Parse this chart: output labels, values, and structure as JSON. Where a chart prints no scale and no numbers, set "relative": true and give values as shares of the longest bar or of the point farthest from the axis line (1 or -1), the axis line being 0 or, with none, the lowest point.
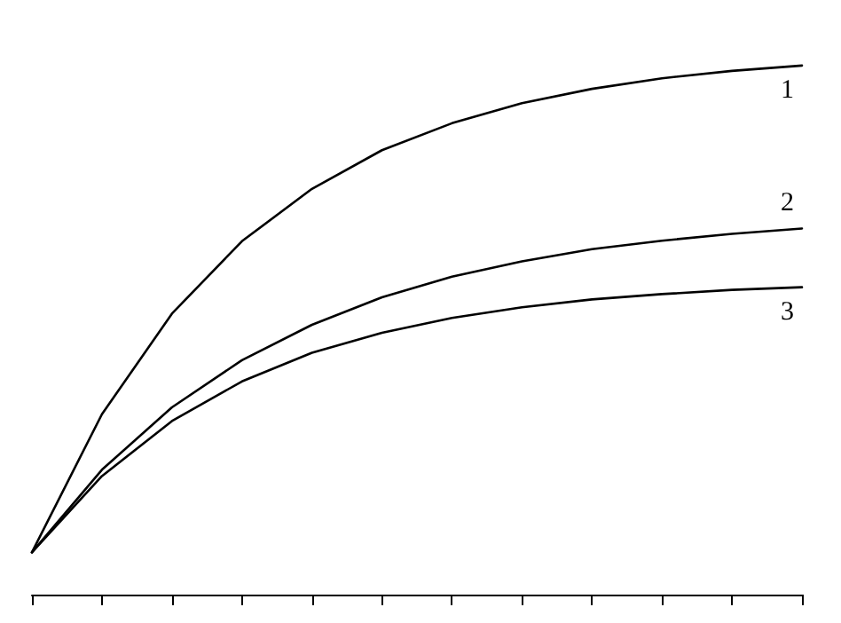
{
  "chart_data": {
    "type": "line",
    "relative": true,
    "categories": [
      null,
      null,
      null,
      null,
      null,
      null,
      null,
      null,
      null,
      null,
      null,
      null
    ],
    "series": [
      {
        "name": "1",
        "color": "#000000",
        "values": [
          0.08,
          0.341,
          0.531,
          0.668,
          0.767,
          0.84,
          0.891,
          0.929,
          0.956,
          0.976,
          0.99,
          1
        ]
      },
      {
        "name": "2",
        "color": "#000000",
        "values": [
          0.08,
          0.236,
          0.354,
          0.443,
          0.51,
          0.562,
          0.601,
          0.63,
          0.653,
          0.669,
          0.682,
          0.692
        ]
      },
      {
        "name": "3",
        "color": "#000000",
        "values": [
          0.08,
          0.224,
          0.328,
          0.403,
          0.457,
          0.495,
          0.523,
          0.543,
          0.558,
          0.568,
          0.576,
          0.581
        ]
      }
    ],
    "marker": "none",
    "line_style": "solid",
    "grid": false,
    "legend": false
  }
}
